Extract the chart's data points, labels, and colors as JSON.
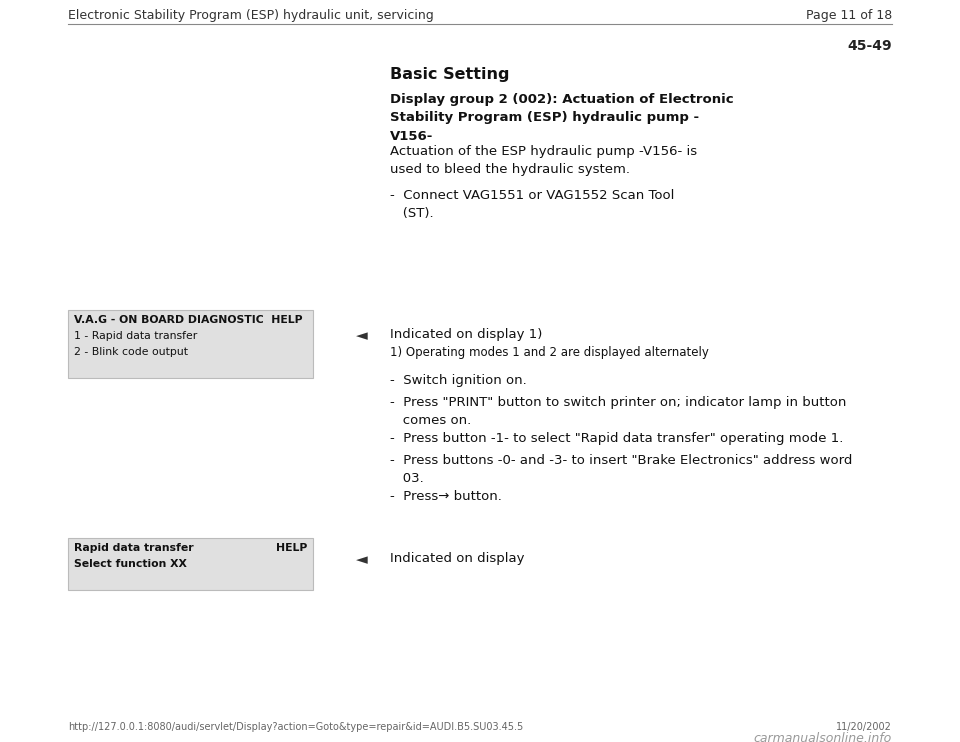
{
  "bg_color": "#ffffff",
  "header_text": "Electronic Stability Program (ESP) hydraulic unit, servicing",
  "page_text": "Page 11 of 18",
  "section_number": "45-49",
  "title": "Basic Setting",
  "subtitle_bold": "Display group 2 (002): Actuation of Electronic\nStability Program (ESP) hydraulic pump -\nV156-",
  "intro_text": "Actuation of the ESP hydraulic pump -V156- is\nused to bleed the hydraulic system.",
  "bullet_connect": "-  Connect VAG1551 or VAG1552 Scan Tool\n   (ST).",
  "indicated1_label": "Indicated on display 1)",
  "footnote1": "1) Operating modes 1 and 2 are displayed alternately",
  "bullets_main": [
    "-  Switch ignition on.",
    "-  Press \"PRINT\" button to switch printer on; indicator lamp in button\n   comes on.",
    "-  Press button -1- to select \"Rapid data transfer\" operating mode 1.",
    "-  Press buttons -0- and -3- to insert \"Brake Electronics\" address word\n   03.",
    "-  Press→ button."
  ],
  "indicated2_label": "Indicated on display",
  "box1_line1": "V.A.G - ON BOARD DIAGNOSTIC  HELP",
  "box1_line2": "1 - Rapid data transfer",
  "box1_line3": "2 - Blink code output",
  "box2_line1_left": "Rapid data transfer",
  "box2_line1_right": "HELP",
  "box2_line2": "Select function XX",
  "footer_url": "http://127.0.0.1:8080/audi/servlet/Display?action=Goto&type=repair&id=AUDI.B5.SU03.45.5",
  "footer_date": "11/20/2002",
  "footer_logo": "carmanualsonline.info",
  "box_bg": "#e0e0e0",
  "text_color": "#1a1a1a",
  "sep_color": "#888888",
  "arrow_char": "◄"
}
